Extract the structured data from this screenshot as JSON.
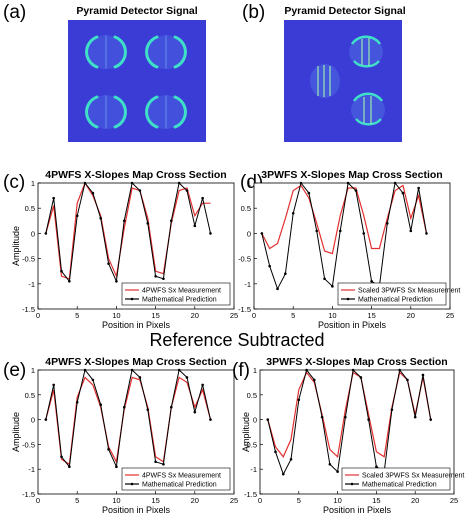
{
  "colors": {
    "background": "#3b3bd6",
    "measurement": "#e23030",
    "prediction": "#000000",
    "spot": "#3fe0c8"
  },
  "images": [
    {
      "label": "(a)",
      "title": "Pyramid Detector Signal",
      "kind": "4pwfs"
    },
    {
      "label": "(b)",
      "title": "Pyramid Detector Signal",
      "kind": "3pwfs"
    }
  ],
  "banner": "Reference Subtracted",
  "chart_data": [
    {
      "type": "line",
      "label": "(c)",
      "title": "4PWFS X-Slopes Map Cross Section",
      "xlabel": "Position in Pixels",
      "ylabel": "Amplitude",
      "xlim": [
        0,
        25
      ],
      "ylim": [
        -1.5,
        1
      ],
      "xticks": [
        "0",
        "5",
        "10",
        "15",
        "20",
        "25"
      ],
      "yticks": [
        "-1.5",
        "-1",
        "-0.5",
        "0",
        "0.5",
        "1"
      ],
      "legend": "bottom-right",
      "series": [
        {
          "name": "4PWFS Sx Measurement",
          "color": "#e23030",
          "marker": false,
          "x": [
            1,
            2,
            3,
            4,
            5,
            6,
            7,
            8,
            9,
            10,
            11,
            12,
            13,
            14,
            15,
            16,
            17,
            18,
            19,
            20,
            21,
            22
          ],
          "y": [
            0,
            0.55,
            -0.85,
            -0.9,
            0.6,
            1.0,
            0.75,
            0.35,
            -0.5,
            -0.85,
            0.1,
            0.9,
            0.85,
            0.3,
            -0.75,
            -0.8,
            0.2,
            0.85,
            0.9,
            0.35,
            0.6,
            0.6
          ]
        },
        {
          "name": "Mathematical Prediction",
          "color": "#000000",
          "marker": true,
          "x": [
            1,
            2,
            3,
            4,
            5,
            6,
            7,
            8,
            9,
            10,
            11,
            12,
            13,
            14,
            15,
            16,
            17,
            18,
            19,
            20,
            21,
            22
          ],
          "y": [
            0,
            0.7,
            -0.75,
            -0.95,
            0.35,
            1.0,
            0.8,
            0.3,
            -0.6,
            -0.95,
            0.25,
            1.0,
            0.85,
            0.2,
            -0.85,
            -0.9,
            0.25,
            1.0,
            0.85,
            0.15,
            0.7,
            0
          ]
        }
      ]
    },
    {
      "type": "line",
      "label": "(d)",
      "title": "3PWFS X-Slopes Map Cross Section",
      "xlabel": "Position in Pixels",
      "ylabel": "",
      "xlim": [
        0,
        25
      ],
      "ylim": [
        -1.5,
        1
      ],
      "xticks": [
        "0",
        "5",
        "10",
        "15",
        "20",
        "25"
      ],
      "yticks": [
        "-1.5",
        "-1",
        "-0.5",
        "0",
        "0.5",
        "1"
      ],
      "legend": "bottom-right",
      "series": [
        {
          "name": "Scaled 3PWFS Sx Measurement",
          "color": "#e23030",
          "marker": false,
          "x": [
            1,
            2,
            3,
            4,
            5,
            6,
            7,
            8,
            9,
            10,
            11,
            12,
            13,
            14,
            15,
            16,
            17,
            18,
            19,
            20,
            21,
            22
          ],
          "y": [
            0,
            -0.3,
            -0.2,
            0.3,
            0.85,
            0.95,
            0.7,
            0.2,
            -0.35,
            -0.4,
            0.35,
            0.9,
            0.9,
            0.35,
            -0.3,
            -0.3,
            0.3,
            0.85,
            0.95,
            0.3,
            0.75,
            0.0
          ]
        },
        {
          "name": "Mathematical Prediction",
          "color": "#000000",
          "marker": true,
          "x": [
            1,
            2,
            3,
            4,
            5,
            6,
            7,
            8,
            9,
            10,
            11,
            12,
            13,
            14,
            15,
            16,
            17,
            18,
            19,
            20,
            21,
            22
          ],
          "y": [
            0,
            -0.65,
            -1.1,
            -0.8,
            0.4,
            1.0,
            0.8,
            0.05,
            -0.9,
            -1.05,
            0.05,
            1.0,
            0.85,
            0.0,
            -0.95,
            -1.05,
            0.2,
            1.0,
            0.8,
            0.05,
            0.9,
            0.0
          ]
        }
      ]
    },
    {
      "type": "line",
      "label": "(e)",
      "title": "4PWFS X-Slopes Map Cross Section",
      "xlabel": "Position in Pixels",
      "ylabel": "Amplitude",
      "xlim": [
        0,
        25
      ],
      "ylim": [
        -1.5,
        1
      ],
      "xticks": [
        "0",
        "5",
        "10",
        "15",
        "20",
        "25"
      ],
      "yticks": [
        "-1.5",
        "-1",
        "-0.5",
        "0",
        "0.5",
        "1"
      ],
      "legend": "bottom-right",
      "series": [
        {
          "name": "4PWFS Sx Measurement",
          "color": "#e23030",
          "marker": false,
          "x": [
            1,
            2,
            3,
            4,
            5,
            6,
            7,
            8,
            9,
            10,
            11,
            12,
            13,
            14,
            15,
            16,
            17,
            18,
            19,
            20,
            21,
            22
          ],
          "y": [
            0,
            0.6,
            -0.8,
            -0.9,
            0.45,
            0.85,
            0.7,
            0.25,
            -0.55,
            -0.85,
            0.2,
            0.85,
            0.8,
            0.25,
            -0.75,
            -0.85,
            0.25,
            0.85,
            0.75,
            0.25,
            0.6,
            0.0
          ]
        },
        {
          "name": "Mathematical Prediction",
          "color": "#000000",
          "marker": true,
          "x": [
            1,
            2,
            3,
            4,
            5,
            6,
            7,
            8,
            9,
            10,
            11,
            12,
            13,
            14,
            15,
            16,
            17,
            18,
            19,
            20,
            21,
            22
          ],
          "y": [
            0,
            0.7,
            -0.75,
            -0.95,
            0.35,
            1.0,
            0.8,
            0.3,
            -0.6,
            -0.95,
            0.25,
            1.0,
            0.85,
            0.2,
            -0.85,
            -0.9,
            0.25,
            1.0,
            0.85,
            0.15,
            0.7,
            0
          ]
        }
      ]
    },
    {
      "type": "line",
      "label": "(f)",
      "title": "3PWFS X-Slopes Map Cross Section",
      "xlabel": "Position in Pixels",
      "ylabel": "Amplitude",
      "xlim": [
        0,
        25
      ],
      "ylim": [
        -1.5,
        1
      ],
      "xticks": [
        "0",
        "5",
        "10",
        "15",
        "20",
        "25"
      ],
      "yticks": [
        "-1.5",
        "-1",
        "-0.5",
        "0",
        "0.5",
        "1"
      ],
      "legend": "bottom-right",
      "series": [
        {
          "name": "Scaled 3PWFS Sx Measurement",
          "color": "#e23030",
          "marker": false,
          "x": [
            1,
            2,
            3,
            4,
            5,
            6,
            7,
            8,
            9,
            10,
            11,
            12,
            13,
            14,
            15,
            16,
            17,
            18,
            19,
            20,
            21,
            22
          ],
          "y": [
            0,
            -0.55,
            -0.75,
            -0.4,
            0.6,
            0.95,
            0.75,
            0.1,
            -0.6,
            -0.75,
            0.2,
            0.95,
            0.85,
            0.1,
            -0.65,
            -0.75,
            0.25,
            0.95,
            0.8,
            0.1,
            0.85,
            0.0
          ]
        },
        {
          "name": "Mathematical Prediction",
          "color": "#000000",
          "marker": true,
          "x": [
            1,
            2,
            3,
            4,
            5,
            6,
            7,
            8,
            9,
            10,
            11,
            12,
            13,
            14,
            15,
            16,
            17,
            18,
            19,
            20,
            21,
            22
          ],
          "y": [
            0,
            -0.65,
            -1.1,
            -0.8,
            0.4,
            1.0,
            0.8,
            0.05,
            -0.9,
            -1.05,
            0.05,
            1.0,
            0.85,
            0.0,
            -0.95,
            -1.05,
            0.2,
            1.0,
            0.8,
            0.05,
            0.9,
            0.0
          ]
        }
      ]
    }
  ]
}
